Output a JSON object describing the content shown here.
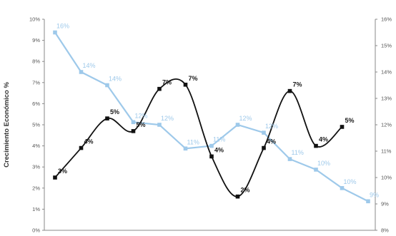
{
  "chart_data": {
    "type": "line",
    "ylabel": "Crecimiento Económico %",
    "left_axis": {
      "min": 0,
      "max": 10,
      "step": 1,
      "ticks": [
        "0%",
        "1%",
        "2%",
        "3%",
        "4%",
        "5%",
        "6%",
        "7%",
        "8%",
        "9%",
        "10%"
      ]
    },
    "right_axis": {
      "min": 8,
      "max": 16,
      "step": 1,
      "ticks": [
        "8%",
        "9%",
        "10%",
        "11%",
        "12%",
        "13%",
        "14%",
        "15%",
        "16%"
      ]
    },
    "grid": false,
    "series": [
      {
        "axis": "left",
        "color": "#111111",
        "marker": "square",
        "smooth": true,
        "values": [
          2.5,
          3.9,
          5.3,
          4.7,
          6.7,
          6.9,
          3.5,
          1.6,
          3.9,
          6.6,
          4.0,
          4.9
        ],
        "labels": [
          "3%",
          "4%",
          "5%",
          "5%",
          "7%",
          "7%",
          "4%",
          "2%",
          "4%",
          "7%",
          "4%",
          "5%"
        ]
      },
      {
        "axis": "right",
        "color": "#9ec9ea",
        "marker": "square",
        "smooth": false,
        "values": [
          15.5,
          14.0,
          13.5,
          12.1,
          12.0,
          11.1,
          11.2,
          12.0,
          11.7,
          10.7,
          10.3,
          9.6,
          9.1
        ],
        "labels": [
          "16%",
          "14%",
          "14%",
          "12%",
          "12%",
          "11%",
          "11%",
          "12%",
          "12%",
          "11%",
          "10%",
          "10%",
          "9%"
        ]
      }
    ]
  }
}
